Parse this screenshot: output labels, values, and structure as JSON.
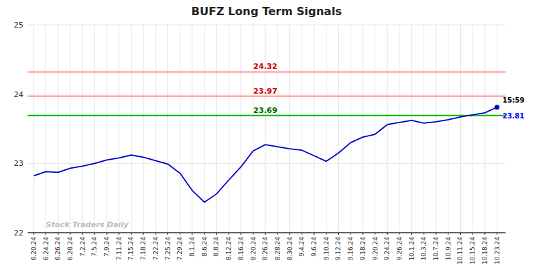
{
  "chart_data": {
    "type": "line",
    "title": "BUFZ Long Term Signals",
    "categories": [
      "6.20.24",
      "6.24.24",
      "6.26.24",
      "6.28.24",
      "7.2.24",
      "7.5.24",
      "7.9.24",
      "7.11.24",
      "7.15.24",
      "7.18.24",
      "7.22.24",
      "7.25.24",
      "7.29.24",
      "8.1.24",
      "8.6.24",
      "8.8.24",
      "8.12.24",
      "8.16.24",
      "8.20.24",
      "8.26.24",
      "8.28.24",
      "8.30.24",
      "9.4.24",
      "9.6.24",
      "9.10.24",
      "9.12.24",
      "9.16.24",
      "9.18.24",
      "9.20.24",
      "9.24.24",
      "9.26.24",
      "10.1.24",
      "10.3.24",
      "10.7.24",
      "10.9.24",
      "10.11.24",
      "10.15.24",
      "10.18.24",
      "10.23.24"
    ],
    "values": [
      22.82,
      22.88,
      22.87,
      22.93,
      22.96,
      23.0,
      23.05,
      23.08,
      23.12,
      23.09,
      23.04,
      22.99,
      22.86,
      22.61,
      22.44,
      22.56,
      22.76,
      22.95,
      23.18,
      23.27,
      23.24,
      23.21,
      23.19,
      23.11,
      23.03,
      23.15,
      23.3,
      23.38,
      23.42,
      23.56,
      23.59,
      23.62,
      23.58,
      23.6,
      23.63,
      23.67,
      23.7,
      23.73,
      23.81
    ],
    "color": "#0000cc",
    "ylim": [
      22,
      25
    ],
    "yticks": [
      22,
      23,
      24,
      25
    ],
    "grid": true,
    "hlines": [
      {
        "value": 24.32,
        "label": "24.32",
        "color": "#ffaaaa",
        "label_color": "#cc0000"
      },
      {
        "value": 23.97,
        "label": "23.97",
        "color": "#ffaaaa",
        "label_color": "#cc0000"
      },
      {
        "value": 23.69,
        "label": "23.69",
        "color": "#00bb00",
        "label_color": "#006600"
      }
    ],
    "annotations": [
      {
        "text": "15:59",
        "color": "#000000"
      },
      {
        "text": "23.81",
        "color": "#0000ff"
      }
    ],
    "watermark": "Stock Traders Daily",
    "watermark_color": "#bbbbbb"
  }
}
